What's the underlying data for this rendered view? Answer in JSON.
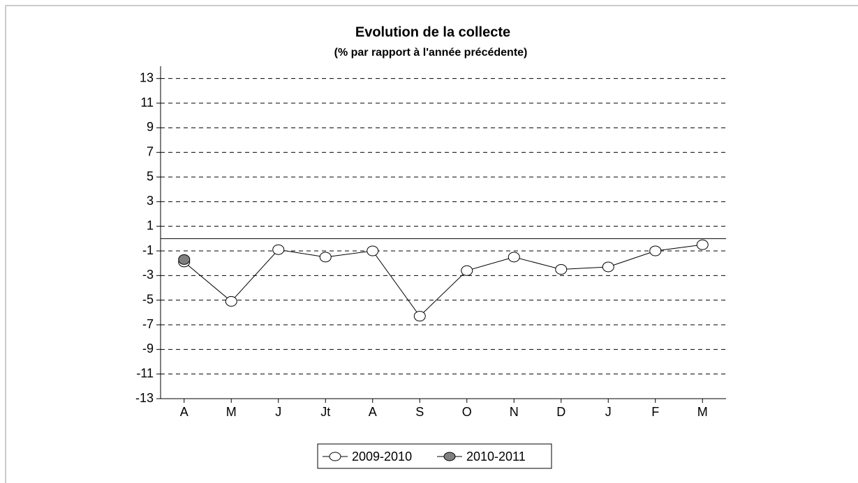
{
  "chart_data": {
    "type": "line",
    "title": "Evolution de la collecte",
    "subtitle": "(% par rapport à l'année précédente)",
    "categories": [
      "A",
      "M",
      "J",
      "Jt",
      "A",
      "S",
      "O",
      "N",
      "D",
      "J",
      "F",
      "M"
    ],
    "series": [
      {
        "name": "2009-2010",
        "color": "#ffffff",
        "values": [
          -1.9,
          -5.1,
          -0.9,
          -1.5,
          -1.0,
          -6.3,
          -2.6,
          -1.5,
          -2.5,
          -2.3,
          -1.0,
          -0.5
        ]
      },
      {
        "name": "2010-2011",
        "color": "#808080",
        "values": [
          -1.7,
          null,
          null,
          null,
          null,
          null,
          null,
          null,
          null,
          null,
          null,
          null
        ]
      }
    ],
    "ylim": [
      -13,
      14
    ],
    "yticks": [
      -13,
      -11,
      -9,
      -7,
      -5,
      -3,
      -1,
      1,
      3,
      5,
      7,
      9,
      11,
      13
    ],
    "grid": true,
    "legend": "bottom"
  }
}
